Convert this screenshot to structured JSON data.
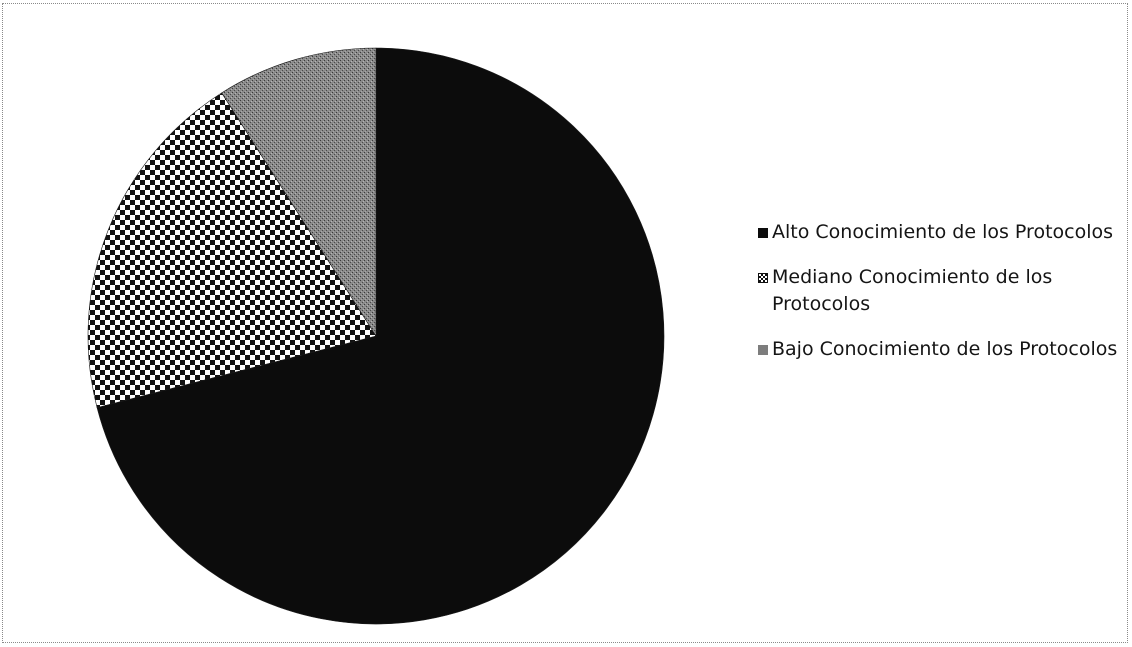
{
  "chart_data": {
    "type": "pie",
    "categories": [
      "Alto Conocimiento de los Protocolos",
      "Mediano Conocimiento de los Protocolos",
      "Bajo Conocimiento de los Protocolos"
    ],
    "values": [
      71,
      20,
      9
    ],
    "start_angle_deg": 0,
    "direction": "clockwise",
    "legend_position": "right",
    "colors": [
      "#0c0c0c",
      "checkerboard",
      "#7d7d7d"
    ]
  },
  "legend": {
    "items": [
      {
        "label": "Alto Conocimiento de los Protocolos",
        "swatch": "solid-black"
      },
      {
        "label": "Mediano Conocimiento de los Protocolos",
        "swatch": "checkerboard"
      },
      {
        "label": "Bajo Conocimiento de los Protocolos",
        "swatch": "gray-dither"
      }
    ]
  }
}
